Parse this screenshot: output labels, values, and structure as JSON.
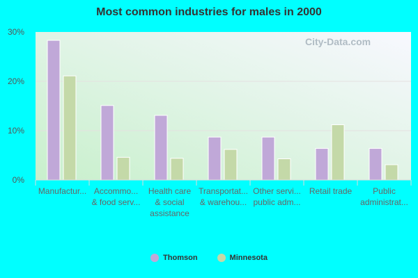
{
  "chart_data": {
    "type": "bar",
    "title": "Most common industries for males in 2000",
    "categories": [
      [
        "Manufactur..."
      ],
      [
        "Accommo...",
        "& food serv..."
      ],
      [
        "Health care",
        "& social",
        "assistance"
      ],
      [
        "Transportat...",
        "& warehou..."
      ],
      [
        "Other servi...",
        "public adm..."
      ],
      [
        "Retail trade"
      ],
      [
        "Public",
        "administrat..."
      ]
    ],
    "series": [
      {
        "name": "Thomson",
        "color": "#c0a8d8",
        "values": [
          28.3,
          15.1,
          13.1,
          8.7,
          8.7,
          6.4,
          6.4
        ]
      },
      {
        "name": "Minnesota",
        "color": "#c4d9a8",
        "values": [
          21.1,
          4.6,
          4.4,
          6.2,
          4.3,
          11.2,
          3.1
        ]
      }
    ],
    "yticks": [
      "0%",
      "10%",
      "20%",
      "30%"
    ],
    "ylim": [
      0,
      30
    ],
    "grid": true,
    "legend": "bottom",
    "watermark": "City-Data.com"
  }
}
